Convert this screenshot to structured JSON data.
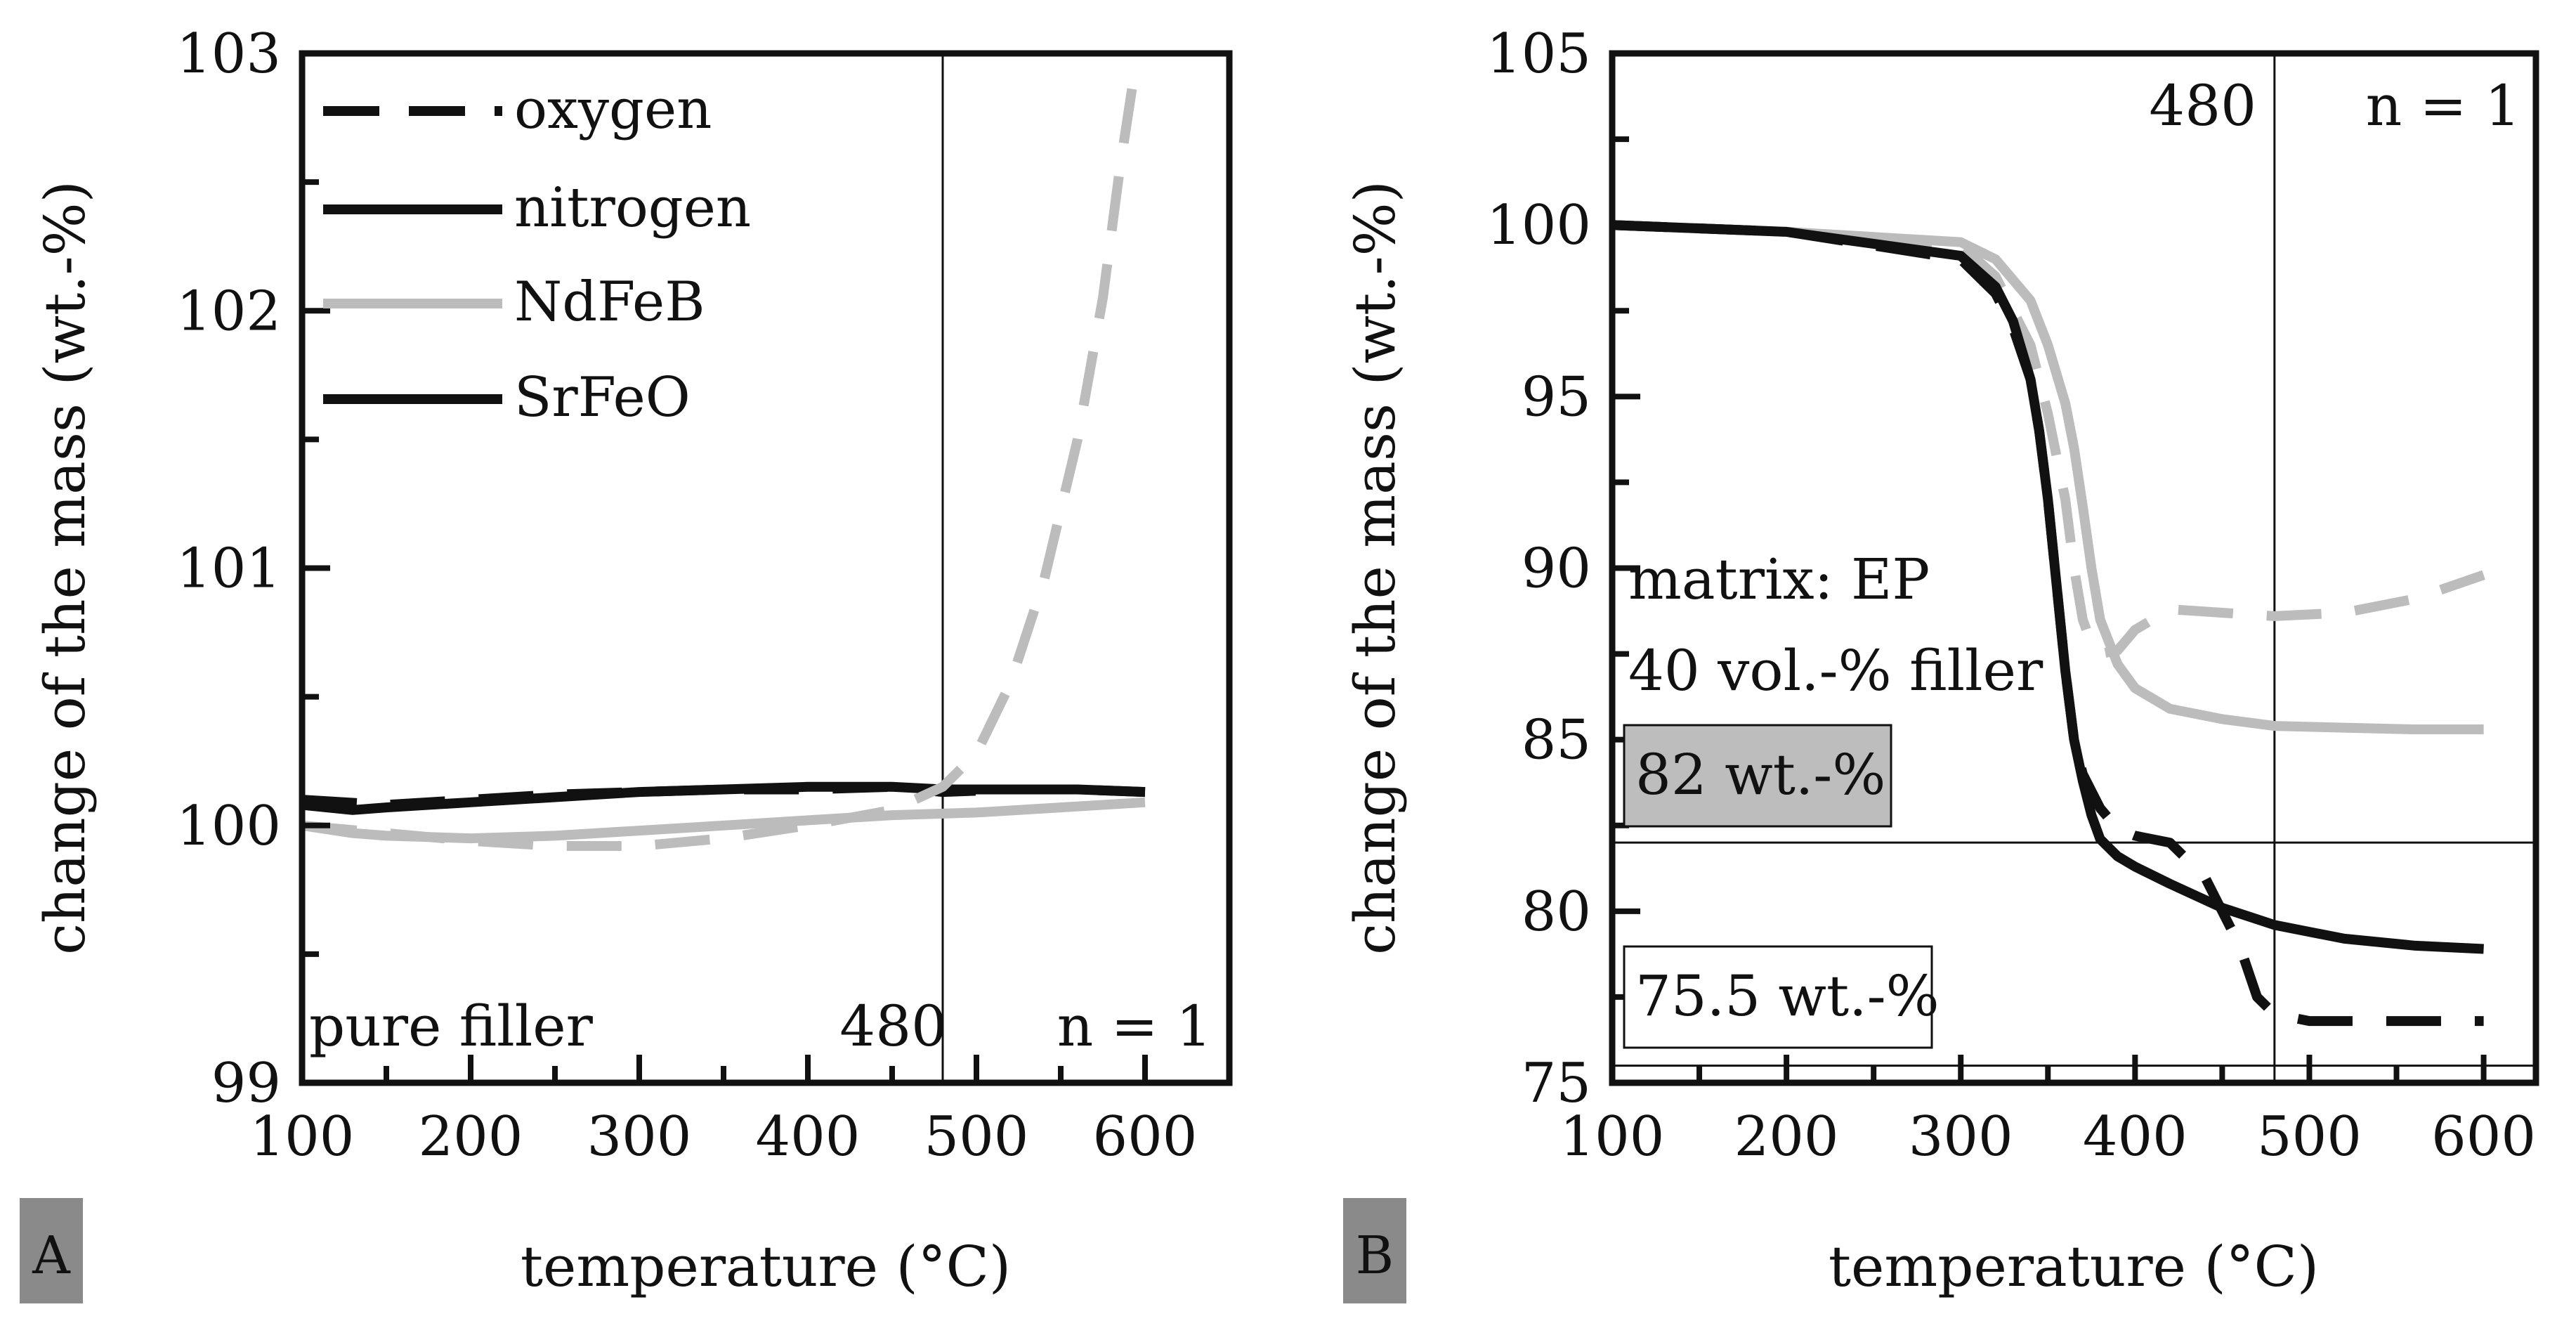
{
  "chart_data": [
    {
      "panel_label": "A",
      "type": "line",
      "xlabel": "temperature (°C)",
      "ylabel": "change of the mass (wt.-%)",
      "xlim": [
        100,
        650
      ],
      "ylim": [
        99,
        103
      ],
      "xticks": [
        100,
        200,
        300,
        400,
        500,
        600
      ],
      "yticks": [
        99,
        100,
        101,
        102,
        103
      ],
      "x_minor_step": 50,
      "y_minor_step": 0.5,
      "vline": {
        "x": 480,
        "label": "480"
      },
      "hlines": [],
      "legend": {
        "position": "top-left",
        "entries": [
          {
            "label": "oxygen",
            "color": "#111111",
            "dash": "dashed"
          },
          {
            "label": "nitrogen",
            "color": "#111111",
            "dash": "solid"
          },
          {
            "label": "NdFeB",
            "color": "#bcbcbc",
            "dash": "solid"
          },
          {
            "label": "SrFeO",
            "color": "#111111",
            "dash": "solid"
          }
        ]
      },
      "annotations": [
        {
          "text": "pure filler",
          "position": "bottom-left"
        },
        {
          "text": "n = 1",
          "position": "bottom-right"
        }
      ],
      "series": [
        {
          "name": "SrFeO nitrogen",
          "color": "#111111",
          "dash": "solid",
          "x": [
            100,
            130,
            150,
            200,
            250,
            300,
            350,
            400,
            450,
            480,
            520,
            560,
            600
          ],
          "y": [
            100.08,
            100.06,
            100.07,
            100.09,
            100.11,
            100.13,
            100.14,
            100.15,
            100.15,
            100.14,
            100.14,
            100.14,
            100.13
          ]
        },
        {
          "name": "SrFeO oxygen",
          "color": "#111111",
          "dash": "dashed",
          "x": [
            100,
            150,
            200,
            250,
            300,
            350,
            400,
            450,
            480,
            520,
            560,
            600
          ],
          "y": [
            100.1,
            100.08,
            100.1,
            100.12,
            100.13,
            100.14,
            100.14,
            100.15,
            100.13,
            100.14,
            100.14,
            100.13
          ]
        },
        {
          "name": "NdFeB nitrogen",
          "color": "#bcbcbc",
          "dash": "solid",
          "x": [
            100,
            130,
            150,
            200,
            250,
            300,
            350,
            400,
            450,
            500,
            550,
            600
          ],
          "y": [
            100.0,
            99.97,
            99.96,
            99.95,
            99.96,
            99.98,
            100.0,
            100.02,
            100.04,
            100.05,
            100.07,
            100.09
          ]
        },
        {
          "name": "NdFeB oxygen",
          "color": "#bcbcbc",
          "dash": "dashed",
          "x": [
            100,
            150,
            200,
            250,
            300,
            350,
            400,
            450,
            480,
            500,
            520,
            540,
            560,
            575,
            585,
            595
          ],
          "y": [
            100.0,
            99.97,
            99.94,
            99.92,
            99.92,
            99.95,
            100.0,
            100.06,
            100.15,
            100.28,
            100.55,
            100.95,
            101.5,
            102.05,
            102.55,
            102.98
          ]
        }
      ]
    },
    {
      "panel_label": "B",
      "type": "line",
      "xlabel": "temperature (°C)",
      "ylabel": "change of the mass (wt.-%)",
      "xlim": [
        100,
        630
      ],
      "ylim": [
        75,
        105
      ],
      "xticks": [
        100,
        200,
        300,
        400,
        500,
        600
      ],
      "yticks": [
        75,
        80,
        85,
        90,
        95,
        100,
        105
      ],
      "x_minor_step": 50,
      "y_minor_step": 2.5,
      "vline": {
        "x": 480,
        "label": "480"
      },
      "hlines": [
        {
          "y": 82,
          "label": "82 wt.-%"
        },
        {
          "y": 75.5,
          "label": "75.5 wt.-%"
        }
      ],
      "annotations": [
        {
          "text": "matrix: EP",
          "position": "middle-left"
        },
        {
          "text": "40 vol.-% filler",
          "position": "middle-left"
        },
        {
          "text": "n = 1",
          "position": "top-right"
        }
      ],
      "series": [
        {
          "name": "NdFeB nitrogen",
          "color": "#bcbcbc",
          "dash": "solid",
          "x": [
            100,
            200,
            300,
            320,
            340,
            350,
            360,
            365,
            370,
            375,
            380,
            390,
            400,
            420,
            450,
            480,
            520,
            560,
            600
          ],
          "y": [
            100.0,
            99.8,
            99.5,
            99.0,
            97.8,
            96.5,
            94.8,
            93.5,
            91.8,
            90.0,
            88.5,
            87.2,
            86.5,
            85.9,
            85.6,
            85.4,
            85.35,
            85.3,
            85.3
          ]
        },
        {
          "name": "NdFeB oxygen",
          "color": "#bcbcbc",
          "dash": "dashed",
          "x": [
            100,
            200,
            300,
            320,
            340,
            350,
            360,
            365,
            370,
            375,
            380,
            390,
            400,
            420,
            450,
            480,
            520,
            560,
            600
          ],
          "y": [
            100.0,
            99.8,
            99.4,
            98.5,
            96.5,
            94.5,
            92.0,
            90.0,
            88.5,
            87.8,
            87.5,
            87.6,
            88.2,
            88.8,
            88.7,
            88.6,
            88.7,
            89.1,
            89.8
          ]
        },
        {
          "name": "SrFeO nitrogen",
          "color": "#111111",
          "dash": "solid",
          "x": [
            100,
            200,
            300,
            320,
            330,
            340,
            345,
            350,
            355,
            360,
            365,
            370,
            375,
            380,
            390,
            400,
            420,
            450,
            480,
            520,
            560,
            600
          ],
          "y": [
            100.0,
            99.8,
            99.1,
            98.2,
            97.2,
            95.5,
            94.0,
            92.0,
            89.5,
            87.0,
            85.0,
            83.8,
            82.8,
            82.1,
            81.6,
            81.3,
            80.8,
            80.1,
            79.6,
            79.2,
            79.0,
            78.9
          ]
        },
        {
          "name": "SrFeO oxygen",
          "color": "#111111",
          "dash": "dashed",
          "x": [
            100,
            200,
            300,
            320,
            330,
            340,
            345,
            350,
            355,
            360,
            365,
            370,
            380,
            390,
            400,
            420,
            440,
            460,
            470,
            480,
            500,
            520,
            560,
            600
          ],
          "y": [
            100.0,
            99.8,
            99.0,
            98.0,
            97.0,
            95.5,
            94.0,
            92.0,
            89.5,
            87.0,
            85.0,
            84.0,
            83.0,
            82.4,
            82.2,
            82.0,
            81.0,
            79.0,
            77.5,
            77.0,
            76.8,
            76.8,
            76.8,
            76.8
          ]
        }
      ]
    }
  ]
}
